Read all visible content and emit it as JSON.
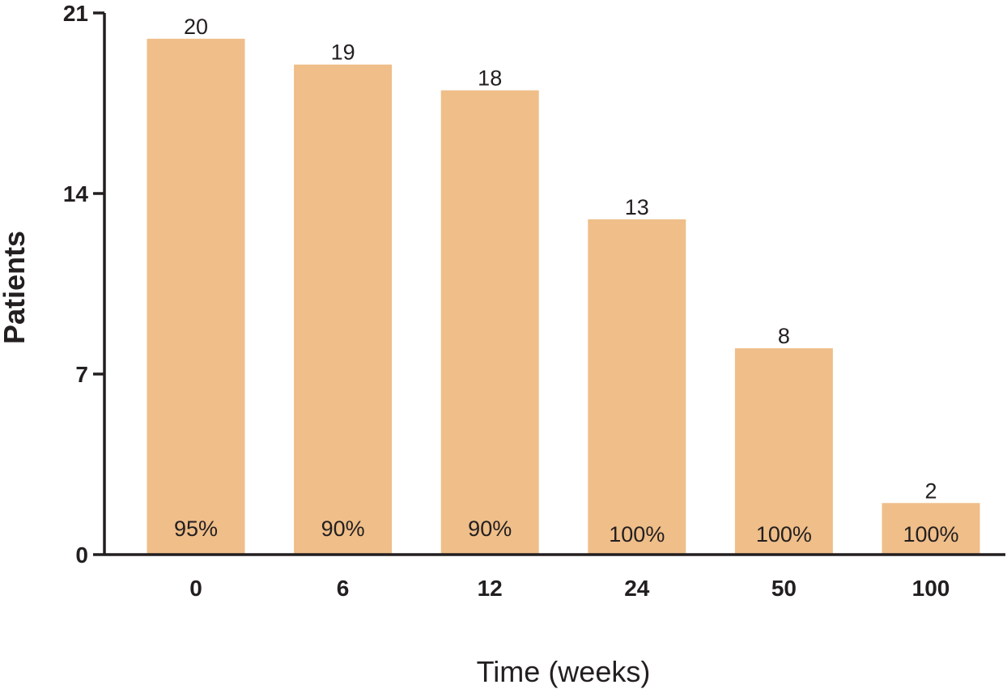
{
  "chart_data": {
    "type": "bar",
    "categories": [
      "0",
      "6",
      "12",
      "24",
      "50",
      "100"
    ],
    "values": [
      20,
      19,
      18,
      13,
      8,
      2
    ],
    "percent_labels": [
      "95%",
      "90%",
      "90%",
      "100%",
      "100%",
      "100%"
    ],
    "title": "",
    "xlabel": "Time (weeks)",
    "ylabel": "Patients",
    "ylim": [
      0,
      21
    ],
    "yticks": [
      "0",
      "7",
      "14",
      "21"
    ],
    "grid": false,
    "legend": "none",
    "bar_color": "#efbe89",
    "axis_color": "#231f20"
  }
}
